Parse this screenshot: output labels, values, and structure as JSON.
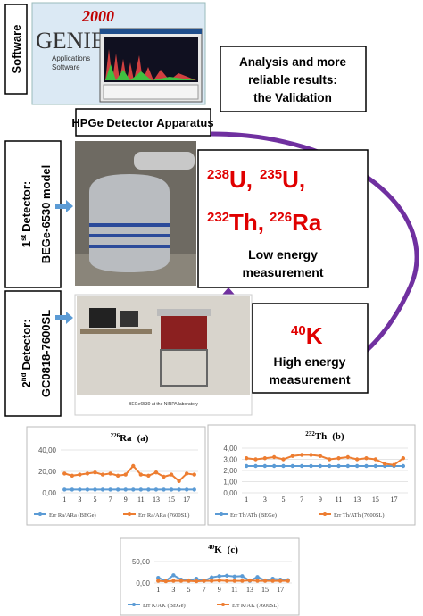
{
  "software_label": "Software",
  "logo": {
    "version": "2000",
    "brand": "GENIE",
    "line1": "Applications",
    "line2": "Software"
  },
  "validation_lines": [
    "Analysis and more",
    "reliable results:",
    "the Validation"
  ],
  "apparatus": "HPGe Detector Apparatus",
  "detector1": {
    "number": "1",
    "sup": "st",
    "word": "Detector:",
    "model": "BEGe-6530 model"
  },
  "detector2": {
    "number": "2",
    "sup": "nd",
    "word": "Detector:",
    "model": "GC0818-7600SL"
  },
  "photo_caption": "BEGe6530 at the NIRPA laboratory",
  "low_energy": {
    "isotopes": [
      {
        "mass": "238",
        "symbol": "U,"
      },
      {
        "mass": "235",
        "symbol": "U,"
      },
      {
        "mass": "232",
        "symbol": "Th,"
      },
      {
        "mass": "226",
        "symbol": "Ra"
      }
    ],
    "label_lines": [
      "Low energy",
      "measurement"
    ]
  },
  "high_energy": {
    "isotope": {
      "mass": "40",
      "symbol": "K"
    },
    "label_lines": [
      "High energy",
      "measurement"
    ]
  },
  "chart_data": [
    {
      "type": "line",
      "title": {
        "mass": "226",
        "element": "Ra",
        "panel": "(a)"
      },
      "categories": [
        1,
        null,
        3,
        null,
        5,
        null,
        7,
        null,
        9,
        null,
        11,
        null,
        13,
        null,
        15,
        null,
        17,
        null
      ],
      "ylim": [
        0,
        40
      ],
      "yticks": [
        {
          "value": 0,
          "label": "0,00"
        },
        {
          "value": 20,
          "label": "20,00"
        },
        {
          "value": 40,
          "label": "40,00"
        }
      ],
      "grid": true,
      "series": [
        {
          "name": "Err Ra/ARa (BEGe)",
          "color": "#5b9bd5",
          "values": [
            3,
            3,
            3,
            3,
            3,
            3,
            3,
            3,
            3,
            3,
            3,
            3,
            3,
            3,
            3,
            3,
            3,
            3
          ]
        },
        {
          "name": "Err Ra/ARa (7600SL)",
          "color": "#ed7d31",
          "values": [
            18,
            16,
            17,
            18,
            19,
            17,
            18,
            16,
            17,
            25,
            17,
            16,
            19,
            15,
            17,
            11,
            18,
            17
          ]
        }
      ]
    },
    {
      "type": "line",
      "title": {
        "mass": "232",
        "element": "Th",
        "panel": "(b)"
      },
      "categories": [
        1,
        null,
        3,
        null,
        5,
        null,
        7,
        null,
        9,
        null,
        11,
        null,
        13,
        null,
        15,
        null,
        17,
        null
      ],
      "ylim": [
        0,
        4
      ],
      "yticks": [
        {
          "value": 0,
          "label": "0,00"
        },
        {
          "value": 1,
          "label": "1,00"
        },
        {
          "value": 2,
          "label": "2,00"
        },
        {
          "value": 3,
          "label": "3,00"
        },
        {
          "value": 4,
          "label": "4,00"
        }
      ],
      "grid": true,
      "series": [
        {
          "name": "Err Th/ATh (BEGe)",
          "color": "#5b9bd5",
          "values": [
            2.4,
            2.4,
            2.4,
            2.4,
            2.4,
            2.4,
            2.4,
            2.4,
            2.4,
            2.4,
            2.4,
            2.4,
            2.4,
            2.4,
            2.4,
            2.4,
            2.4,
            2.4
          ]
        },
        {
          "name": "Err Th/ATh (7600SL)",
          "color": "#ed7d31",
          "values": [
            3.1,
            3.0,
            3.1,
            3.2,
            3.0,
            3.3,
            3.4,
            3.4,
            3.3,
            3.0,
            3.1,
            3.2,
            3.0,
            3.1,
            3.0,
            2.6,
            2.5,
            3.1
          ]
        }
      ]
    },
    {
      "type": "line",
      "title": {
        "mass": "40",
        "element": "K",
        "panel": "(c)"
      },
      "categories": [
        1,
        null,
        3,
        null,
        5,
        null,
        7,
        null,
        9,
        null,
        11,
        null,
        13,
        null,
        15,
        null,
        17,
        null
      ],
      "ylim": [
        0,
        50
      ],
      "yticks": [
        {
          "value": 0,
          "label": "0,00"
        },
        {
          "value": 50,
          "label": "50,00"
        }
      ],
      "grid": true,
      "series": [
        {
          "name": "Err K/AK (BEGe)",
          "color": "#5b9bd5",
          "values": [
            12,
            5,
            18,
            8,
            6,
            10,
            5,
            13,
            16,
            17,
            15,
            16,
            5,
            14,
            6,
            10,
            8,
            7
          ]
        },
        {
          "name": "Err K/AK (7600SL)",
          "color": "#ed7d31",
          "values": [
            5,
            4,
            5,
            5,
            5,
            4,
            5,
            5,
            6,
            5,
            5,
            5,
            6,
            5,
            5,
            5,
            5,
            5
          ]
        }
      ]
    }
  ]
}
